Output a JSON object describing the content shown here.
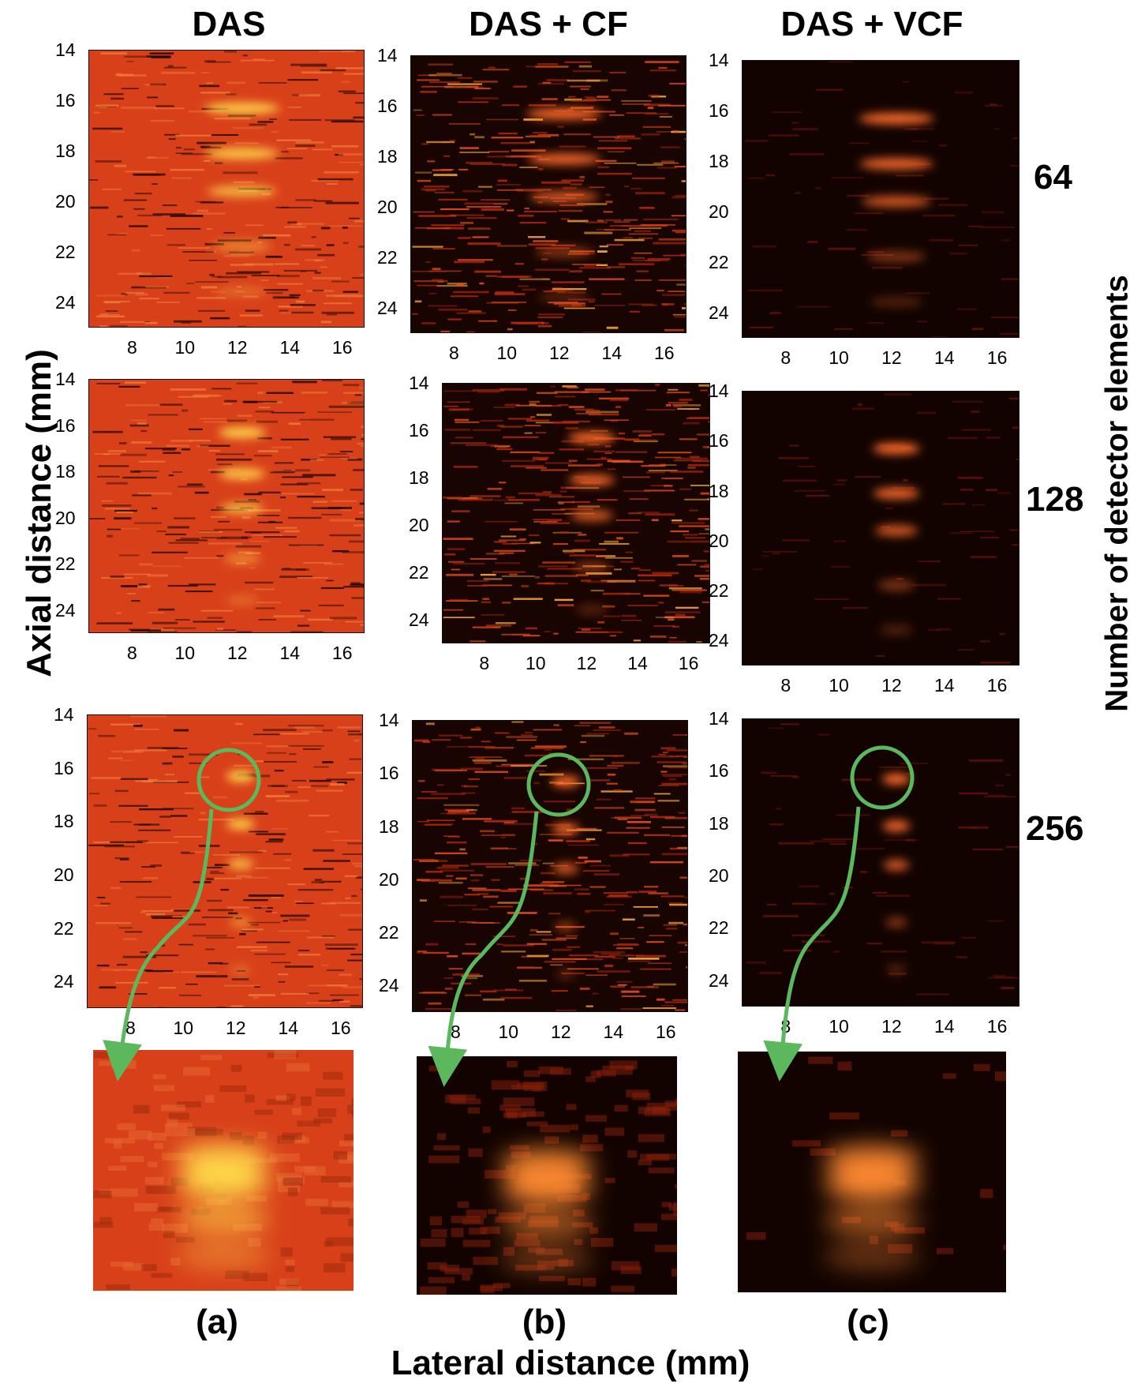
{
  "columns": [
    "DAS",
    "DAS + CF",
    "DAS + VCF"
  ],
  "rows": [
    "64",
    "128",
    "256"
  ],
  "axial_ticks": [
    "14",
    "16",
    "18",
    "20",
    "22",
    "24"
  ],
  "lateral_ticks": [
    "8",
    "10",
    "12",
    "14",
    "16"
  ],
  "captions": [
    "(a)",
    "(b)",
    "(c)"
  ],
  "y_axis_label": "Axial distance (mm)",
  "x_axis_label": "Lateral distance (mm)",
  "right_axis_label": "Number of detector elements",
  "colors": {
    "highlight": "#5cb85c",
    "das_bg": "#d8401a",
    "cf_bg": "#180400",
    "vcf_bg": "#120300"
  }
}
